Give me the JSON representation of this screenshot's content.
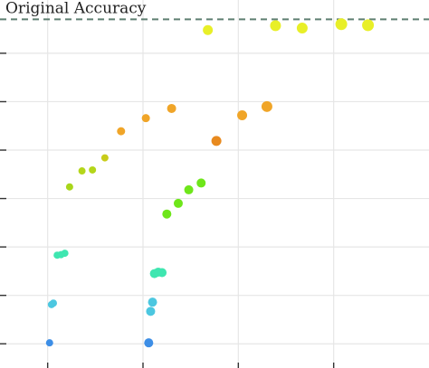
{
  "chart_data": {
    "type": "scatter",
    "title": "",
    "xlabel": "",
    "ylabel": "",
    "xlim": [
      0,
      4.5
    ],
    "ylim": [
      0,
      7.6
    ],
    "x_gridlines": [
      0.5,
      1.5,
      2.5,
      3.5
    ],
    "y_gridlines": [
      0.5,
      1.5,
      2.5,
      3.5,
      4.5,
      5.5,
      6.5
    ],
    "grid": true,
    "reference_line": {
      "y": 7.2,
      "label": "Original Accuracy",
      "color": "#5f7f72",
      "style": "dashed"
    },
    "series": [
      {
        "points": [
          {
            "x": 0.52,
            "y": 0.52,
            "size": 4,
            "color": "#3d8ee6"
          },
          {
            "x": 0.54,
            "y": 1.31,
            "size": 4,
            "color": "#4cc7e0"
          },
          {
            "x": 0.56,
            "y": 1.34,
            "size": 4,
            "color": "#4cc7e0"
          },
          {
            "x": 0.6,
            "y": 2.33,
            "size": 4,
            "color": "#3fe6b0"
          },
          {
            "x": 0.64,
            "y": 2.34,
            "size": 4,
            "color": "#3fe6b0"
          },
          {
            "x": 0.68,
            "y": 2.37,
            "size": 4,
            "color": "#3fe6b0"
          },
          {
            "x": 0.73,
            "y": 3.74,
            "size": 4,
            "color": "#a8d61a"
          },
          {
            "x": 0.86,
            "y": 4.07,
            "size": 4,
            "color": "#b4d61a"
          },
          {
            "x": 0.97,
            "y": 4.09,
            "size": 4,
            "color": "#b4d61a"
          },
          {
            "x": 1.1,
            "y": 4.34,
            "size": 4,
            "color": "#c8cc1a"
          },
          {
            "x": 1.27,
            "y": 4.89,
            "size": 4.5,
            "color": "#f0a528"
          },
          {
            "x": 1.53,
            "y": 5.16,
            "size": 4.5,
            "color": "#f0a528"
          },
          {
            "x": 1.56,
            "y": 0.52,
            "size": 5,
            "color": "#3d8ee6"
          },
          {
            "x": 1.58,
            "y": 1.17,
            "size": 5,
            "color": "#4cc7e0"
          },
          {
            "x": 1.6,
            "y": 1.36,
            "size": 5,
            "color": "#4cc7e0"
          },
          {
            "x": 1.62,
            "y": 1.95,
            "size": 5,
            "color": "#3fe6b0"
          },
          {
            "x": 1.66,
            "y": 1.98,
            "size": 5,
            "color": "#3fe6b0"
          },
          {
            "x": 1.7,
            "y": 1.97,
            "size": 5,
            "color": "#3fe6b0"
          },
          {
            "x": 1.75,
            "y": 3.18,
            "size": 5,
            "color": "#6ee61a"
          },
          {
            "x": 1.8,
            "y": 5.36,
            "size": 5,
            "color": "#f0a528"
          },
          {
            "x": 1.87,
            "y": 3.4,
            "size": 5,
            "color": "#6ee61a"
          },
          {
            "x": 1.98,
            "y": 3.68,
            "size": 5,
            "color": "#6ee61a"
          },
          {
            "x": 2.11,
            "y": 3.82,
            "size": 5,
            "color": "#6ee61a"
          },
          {
            "x": 2.18,
            "y": 6.98,
            "size": 5.5,
            "color": "#e8ef28"
          },
          {
            "x": 2.27,
            "y": 4.69,
            "size": 5.5,
            "color": "#e88a1f"
          },
          {
            "x": 2.54,
            "y": 5.22,
            "size": 5.5,
            "color": "#f0a528"
          },
          {
            "x": 2.8,
            "y": 5.4,
            "size": 6,
            "color": "#f0a528"
          },
          {
            "x": 2.89,
            "y": 7.07,
            "size": 6,
            "color": "#e8ef28"
          },
          {
            "x": 3.17,
            "y": 7.02,
            "size": 6,
            "color": "#e8ef28"
          },
          {
            "x": 3.58,
            "y": 7.1,
            "size": 6.5,
            "color": "#e8ef28"
          },
          {
            "x": 3.86,
            "y": 7.08,
            "size": 6.5,
            "color": "#e8ef28"
          }
        ]
      }
    ]
  }
}
